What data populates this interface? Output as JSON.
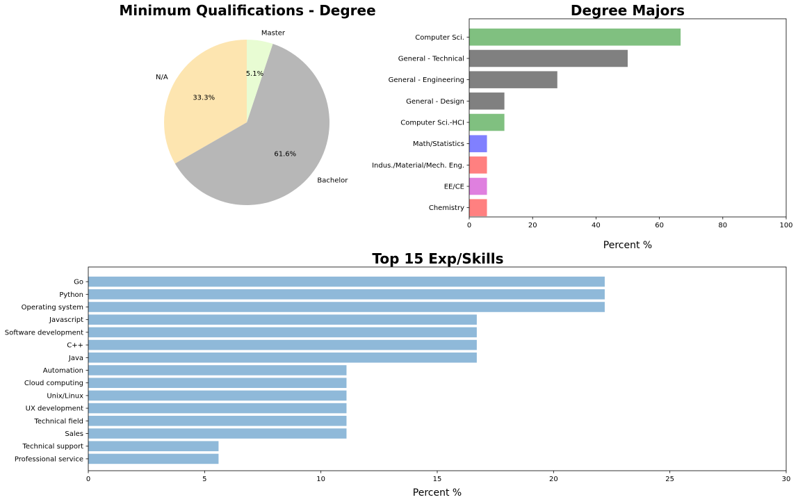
{
  "chart_data": [
    {
      "type": "pie",
      "title": "Minimum Qualifications - Degree",
      "start_angle_deg": 90,
      "direction": "counterclockwise",
      "slices": [
        {
          "label": "N/A",
          "value": 33.3,
          "pct_label": "33.3%",
          "color": "#fde5b0"
        },
        {
          "label": "Bachelor",
          "value": 61.6,
          "pct_label": "61.6%",
          "color": "#b7b7b7"
        },
        {
          "label": "Master",
          "value": 5.1,
          "pct_label": "5.1%",
          "color": "#e8fcd3"
        }
      ]
    },
    {
      "type": "bar",
      "orientation": "horizontal",
      "title": "Degree Majors",
      "xlabel": "Percent %",
      "ylabel": "",
      "xlim": [
        0,
        100
      ],
      "xticks": [
        "0",
        "20",
        "40",
        "60",
        "80",
        "100"
      ],
      "categories": [
        "Computer Sci.",
        "General - Technical",
        "General - Engineering",
        "General - Design",
        "Computer Sci.-HCI",
        "Math/Statistics",
        "Indus./Material/Mech. Eng.",
        "EE/CE",
        "Chemistry"
      ],
      "values": [
        66.7,
        50.0,
        27.8,
        11.1,
        11.1,
        5.6,
        5.6,
        5.6,
        5.6
      ],
      "colors": [
        "#80c080",
        "#808080",
        "#808080",
        "#808080",
        "#80c080",
        "#8080ff",
        "#ff8080",
        "#df80df",
        "#ff8080"
      ],
      "grid": false
    },
    {
      "type": "bar",
      "orientation": "horizontal",
      "title": "Top 15 Exp/Skills",
      "xlabel": "Percent %",
      "ylabel": "",
      "xlim": [
        0,
        30
      ],
      "xticks": [
        "0",
        "5",
        "10",
        "15",
        "20",
        "25",
        "30"
      ],
      "categories": [
        "Go",
        "Python",
        "Operating system",
        "Javascript",
        "Software development",
        "C++",
        "Java",
        "Automation",
        "Cloud computing",
        "Unix/Linux",
        "UX development",
        "Technical field",
        "Sales",
        "Technical support",
        "Professional service"
      ],
      "values": [
        22.2,
        22.2,
        22.2,
        16.7,
        16.7,
        16.7,
        16.7,
        11.1,
        11.1,
        11.1,
        11.1,
        11.1,
        11.1,
        5.6,
        5.6
      ],
      "color": "#8fb9d9",
      "grid": false
    }
  ]
}
